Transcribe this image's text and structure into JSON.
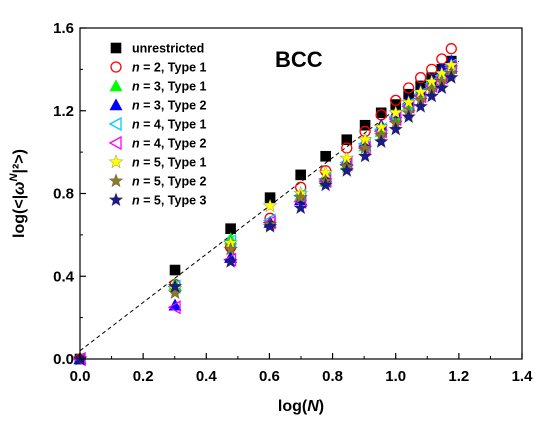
{
  "chart_data": {
    "type": "scatter",
    "title": "BCC",
    "xlabel": "log(N)",
    "ylabel": "log(<|ω^N|²>)",
    "xlim": [
      0.0,
      1.4
    ],
    "ylim": [
      0.0,
      1.6
    ],
    "xticks": [
      "0.0",
      "0.2",
      "0.4",
      "0.6",
      "0.8",
      "1.0",
      "1.2",
      "1.4"
    ],
    "yticks": [
      "0.0",
      "0.4",
      "0.8",
      "1.2",
      "1.6"
    ],
    "grid": false,
    "legend_position": "top-left",
    "fit_line": {
      "style": "dashed",
      "color": "#000000",
      "points": [
        [
          0.0,
          0.04
        ],
        [
          1.2,
          1.44
        ]
      ]
    },
    "series": [
      {
        "name": "unrestricted",
        "marker": "square",
        "filled": true,
        "color": "#000000",
        "x": [
          0.0,
          0.301,
          0.477,
          0.602,
          0.699,
          0.778,
          0.845,
          0.903,
          0.954,
          1.0,
          1.041,
          1.079,
          1.114,
          1.146,
          1.176
        ],
        "y": [
          0.0,
          0.43,
          0.63,
          0.78,
          0.89,
          0.98,
          1.06,
          1.13,
          1.19,
          1.23,
          1.28,
          1.32,
          1.36,
          1.4,
          1.44
        ]
      },
      {
        "name": "n = 2, Type 1",
        "marker": "circle",
        "filled": false,
        "color": "#ff0000",
        "x": [
          0.0,
          0.301,
          0.477,
          0.602,
          0.699,
          0.778,
          0.845,
          0.903,
          0.954,
          1.0,
          1.041,
          1.079,
          1.114,
          1.146,
          1.176
        ],
        "y": [
          0.0,
          0.36,
          0.54,
          0.68,
          0.83,
          0.91,
          1.02,
          1.1,
          1.18,
          1.25,
          1.31,
          1.36,
          1.4,
          1.45,
          1.5
        ]
      },
      {
        "name": "n = 3, Type 1",
        "marker": "triangle-up",
        "filled": true,
        "color": "#00ff00",
        "x": [
          0.0,
          0.301,
          0.477,
          0.602,
          0.699,
          0.778,
          0.845,
          0.903,
          0.954,
          1.0,
          1.041,
          1.079,
          1.114,
          1.146,
          1.176
        ],
        "y": [
          0.0,
          0.36,
          0.58,
          0.66,
          0.79,
          0.86,
          0.94,
          1.03,
          1.1,
          1.17,
          1.23,
          1.29,
          1.34,
          1.39,
          1.43
        ]
      },
      {
        "name": "n = 3, Type 2",
        "marker": "triangle-up",
        "filled": true,
        "color": "#0000ff",
        "x": [
          0.0,
          0.301,
          0.477,
          0.602,
          0.699,
          0.778,
          0.845,
          0.903,
          0.954,
          1.0,
          1.041,
          1.079,
          1.114,
          1.146,
          1.176
        ],
        "y": [
          0.0,
          0.26,
          0.49,
          0.66,
          0.77,
          0.88,
          0.96,
          1.05,
          1.13,
          1.19,
          1.25,
          1.3,
          1.35,
          1.4,
          1.44
        ]
      },
      {
        "name": "n = 4, Type 1",
        "marker": "triangle-left",
        "filled": false,
        "color": "#00ccff",
        "x": [
          0.0,
          0.301,
          0.477,
          0.602,
          0.699,
          0.778,
          0.845,
          0.903,
          0.954,
          1.0,
          1.041,
          1.079,
          1.114,
          1.146,
          1.176
        ],
        "y": [
          0.0,
          0.35,
          0.57,
          0.67,
          0.79,
          0.87,
          0.95,
          1.04,
          1.11,
          1.17,
          1.23,
          1.28,
          1.33,
          1.37,
          1.42
        ]
      },
      {
        "name": "n = 4, Type 2",
        "marker": "triangle-left",
        "filled": false,
        "color": "#ff00ff",
        "x": [
          0.0,
          0.301,
          0.477,
          0.602,
          0.699,
          0.778,
          0.845,
          0.903,
          0.954,
          1.0,
          1.041,
          1.079,
          1.114,
          1.146,
          1.176
        ],
        "y": [
          0.0,
          0.25,
          0.48,
          0.66,
          0.76,
          0.86,
          0.94,
          1.02,
          1.1,
          1.16,
          1.22,
          1.27,
          1.32,
          1.36,
          1.41
        ]
      },
      {
        "name": "n = 5, Type 1",
        "marker": "star",
        "filled": true,
        "color": "#ffff00",
        "x": [
          0.0,
          0.301,
          0.477,
          0.602,
          0.699,
          0.778,
          0.845,
          0.903,
          0.954,
          1.0,
          1.041,
          1.079,
          1.114,
          1.146,
          1.176
        ],
        "y": [
          0.0,
          0.34,
          0.56,
          0.74,
          0.8,
          0.9,
          0.97,
          1.06,
          1.12,
          1.19,
          1.24,
          1.29,
          1.34,
          1.38,
          1.42
        ]
      },
      {
        "name": "n = 5, Type 2",
        "marker": "star",
        "filled": true,
        "color": "#8a7a2a",
        "x": [
          0.0,
          0.301,
          0.477,
          0.602,
          0.699,
          0.778,
          0.845,
          0.903,
          0.954,
          1.0,
          1.041,
          1.079,
          1.114,
          1.146,
          1.176
        ],
        "y": [
          0.0,
          0.32,
          0.53,
          0.65,
          0.78,
          0.86,
          0.93,
          1.02,
          1.08,
          1.14,
          1.19,
          1.25,
          1.3,
          1.34,
          1.38
        ]
      },
      {
        "name": "n = 5, Type 3",
        "marker": "star",
        "filled": true,
        "color": "#1a1a8a",
        "x": [
          0.0,
          0.301,
          0.477,
          0.602,
          0.699,
          0.778,
          0.845,
          0.903,
          0.954,
          1.0,
          1.041,
          1.079,
          1.114,
          1.146,
          1.176
        ],
        "y": [
          0.0,
          0.35,
          0.47,
          0.64,
          0.73,
          0.84,
          0.91,
          0.98,
          1.05,
          1.11,
          1.17,
          1.22,
          1.27,
          1.31,
          1.36
        ]
      }
    ]
  }
}
